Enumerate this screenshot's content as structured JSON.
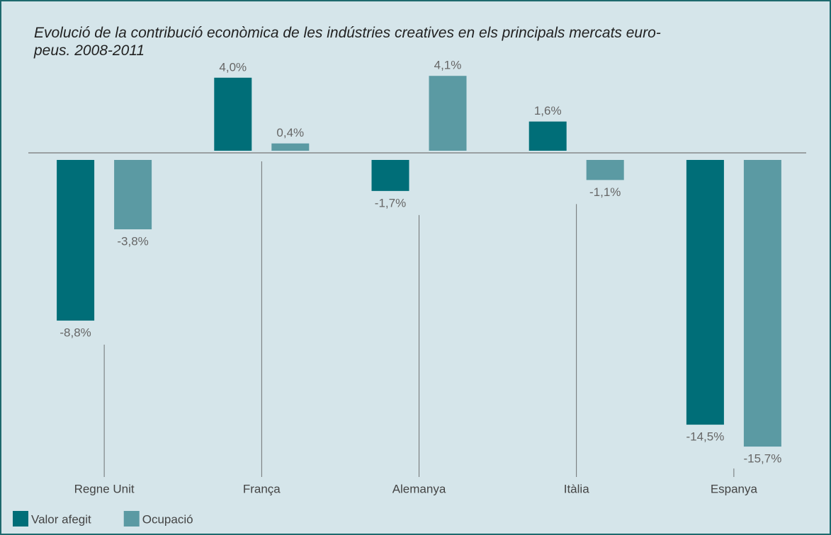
{
  "chart_data": {
    "type": "bar",
    "title": "Evolució de la contribució econòmica de les indústries creatives en els principals mercats euro-\npeus. 2008-2011",
    "categories": [
      "Regne Unit",
      "França",
      "Alemanya",
      "Itàlia",
      "Espanya"
    ],
    "series": [
      {
        "name": "Valor afegit",
        "color": "#006e78",
        "values": [
          -8.8,
          4.0,
          -1.7,
          1.6,
          -14.5
        ],
        "value_labels": [
          "-8,8%",
          "4,0%",
          "-1,7%",
          "1,6%",
          "-14,5%"
        ]
      },
      {
        "name": "Ocupació",
        "color": "#5b9aa3",
        "values": [
          -3.8,
          0.4,
          4.1,
          -1.1,
          -15.7
        ],
        "value_labels": [
          "-3,8%",
          "0,4%",
          "4,1%",
          "-1,1%",
          "-15,7%"
        ]
      }
    ],
    "legend": "bottom-left"
  }
}
